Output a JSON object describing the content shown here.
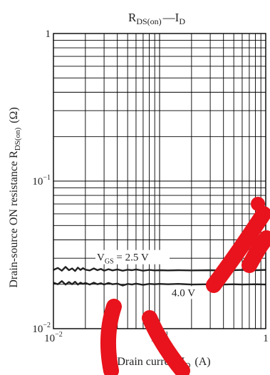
{
  "chart_data": {
    "type": "line",
    "title": {
      "main": "R",
      "main_sub": "DS(on)",
      "dash": "—",
      "var": "I",
      "var_sub": "D"
    },
    "xlabel": {
      "main": "Drain current  I",
      "sub": "D",
      "unit": "(A)"
    },
    "ylabel": {
      "main": "Drain-source ON resistance  R",
      "sub": "DS(on)",
      "unit": "(Ω)"
    },
    "x_scale": "log",
    "y_scale": "log",
    "xlim": [
      0.01,
      1
    ],
    "ylim": [
      0.01,
      1
    ],
    "grid": true,
    "x_ticks": [
      {
        "value": 0.01,
        "base": "10",
        "exp": "−2"
      },
      {
        "value": 0.1,
        "base": "10",
        "exp": "−1"
      },
      {
        "value": 1,
        "base": "1",
        "exp": ""
      }
    ],
    "y_ticks": [
      {
        "value": 1,
        "base": "1",
        "exp": ""
      },
      {
        "value": 0.1,
        "base": "10",
        "exp": "−1"
      },
      {
        "value": 0.01,
        "base": "10",
        "exp": "−2"
      }
    ],
    "series": [
      {
        "label_parts": {
          "var": "V",
          "sub": "GS",
          "rest": " = 2.5 V"
        },
        "x": [
          0.01,
          0.011,
          0.012,
          0.013,
          0.014,
          0.015,
          0.016,
          0.017,
          0.018,
          0.019,
          0.02,
          0.022,
          0.024,
          0.026,
          0.028,
          0.03,
          0.033,
          0.036,
          0.04,
          0.045,
          0.05,
          0.055,
          0.06,
          0.07,
          0.08,
          0.09,
          0.1,
          0.12,
          0.15,
          0.2,
          0.3,
          0.4,
          0.5,
          0.6,
          0.8,
          1.0
        ],
        "y": [
          0.025,
          0.0258,
          0.0247,
          0.0262,
          0.0249,
          0.0256,
          0.0246,
          0.0259,
          0.025,
          0.0257,
          0.0251,
          0.0248,
          0.0256,
          0.0249,
          0.0254,
          0.0247,
          0.0253,
          0.0248,
          0.0252,
          0.0247,
          0.0251,
          0.0249,
          0.0252,
          0.0247,
          0.025,
          0.0248,
          0.0249,
          0.0248,
          0.0249,
          0.0248,
          0.0249,
          0.0248,
          0.0249,
          0.025,
          0.0249,
          0.025
        ]
      },
      {
        "label": "4.0 V",
        "x": [
          0.01,
          0.011,
          0.012,
          0.013,
          0.014,
          0.015,
          0.016,
          0.017,
          0.018,
          0.019,
          0.02,
          0.022,
          0.024,
          0.026,
          0.028,
          0.03,
          0.033,
          0.036,
          0.04,
          0.045,
          0.05,
          0.055,
          0.06,
          0.07,
          0.08,
          0.09,
          0.1,
          0.12,
          0.15,
          0.2,
          0.3,
          0.4,
          0.5,
          0.6,
          0.8,
          1.0
        ],
        "y": [
          0.0205,
          0.02,
          0.021,
          0.0199,
          0.0207,
          0.02,
          0.0208,
          0.0199,
          0.0205,
          0.0201,
          0.0204,
          0.0199,
          0.0205,
          0.02,
          0.0203,
          0.0199,
          0.0204,
          0.02,
          0.0202,
          0.0196,
          0.0201,
          0.0199,
          0.0202,
          0.0198,
          0.0201,
          0.02,
          0.0201,
          0.02,
          0.0201,
          0.0199,
          0.02,
          0.0199,
          0.02,
          0.0199,
          0.02,
          0.0199
        ]
      }
    ]
  },
  "colors": {
    "series": "#222222",
    "grid": "#000000",
    "watermark": "#e8131c"
  }
}
